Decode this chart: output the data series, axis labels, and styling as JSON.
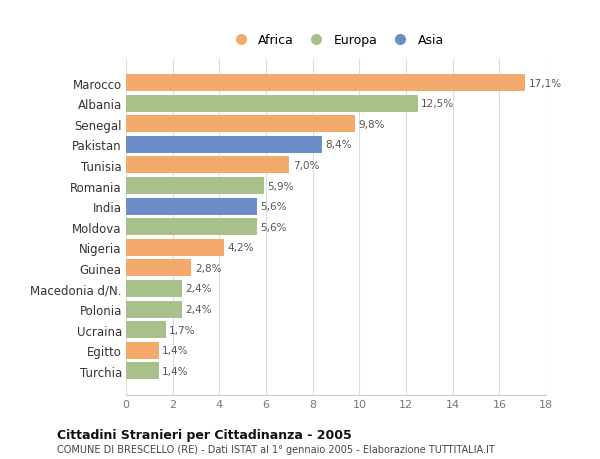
{
  "countries": [
    "Marocco",
    "Albania",
    "Senegal",
    "Pakistan",
    "Tunisia",
    "Romania",
    "India",
    "Moldova",
    "Nigeria",
    "Guinea",
    "Macedonia d/N.",
    "Polonia",
    "Ucraina",
    "Egitto",
    "Turchia"
  ],
  "values": [
    17.1,
    12.5,
    9.8,
    8.4,
    7.0,
    5.9,
    5.6,
    5.6,
    4.2,
    2.8,
    2.4,
    2.4,
    1.7,
    1.4,
    1.4
  ],
  "labels": [
    "17,1%",
    "12,5%",
    "9,8%",
    "8,4%",
    "7,0%",
    "5,9%",
    "5,6%",
    "5,6%",
    "4,2%",
    "2,8%",
    "2,4%",
    "2,4%",
    "1,7%",
    "1,4%",
    "1,4%"
  ],
  "continents": [
    "Africa",
    "Europa",
    "Africa",
    "Asia",
    "Africa",
    "Europa",
    "Asia",
    "Europa",
    "Africa",
    "Africa",
    "Europa",
    "Europa",
    "Europa",
    "Africa",
    "Europa"
  ],
  "colors": {
    "Africa": "#F4A96D",
    "Europa": "#A8C08A",
    "Asia": "#6B8EC9"
  },
  "legend_order": [
    "Africa",
    "Europa",
    "Asia"
  ],
  "xlim": [
    0,
    18
  ],
  "xticks": [
    0,
    2,
    4,
    6,
    8,
    10,
    12,
    14,
    16,
    18
  ],
  "title_bold": "Cittadini Stranieri per Cittadinanza - 2005",
  "subtitle": "COMUNE DI BRESCELLO (RE) - Dati ISTAT al 1° gennaio 2005 - Elaborazione TUTTITALIA.IT",
  "background_color": "#ffffff",
  "bar_height": 0.82
}
